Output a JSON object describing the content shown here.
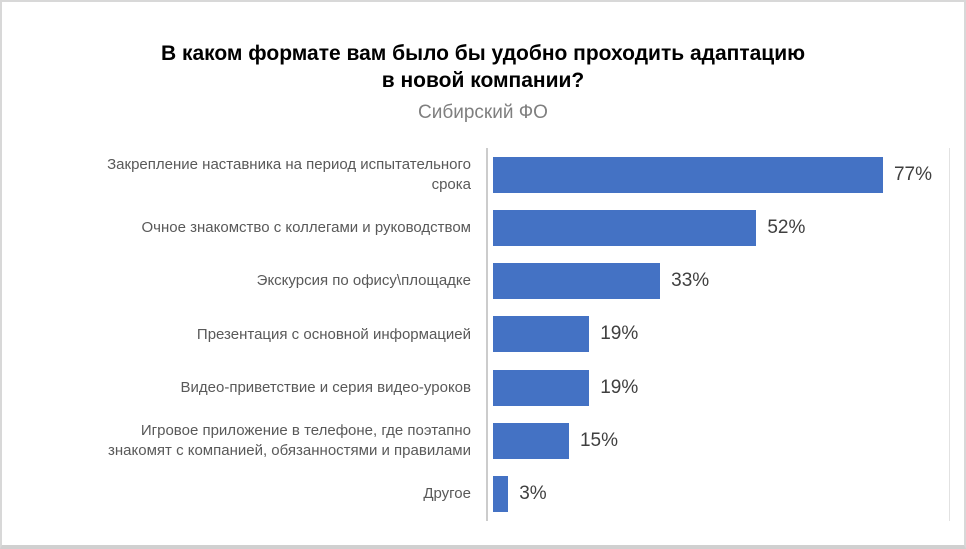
{
  "header": {
    "title_lines": [
      "В каком формате вам было бы удобно проходить адаптацию",
      "в новой компании?"
    ],
    "subtitle": "Сибирский ФО"
  },
  "chart_data": {
    "type": "bar",
    "orientation": "horizontal",
    "title": "В каком формате вам было бы удобно проходить адаптацию в новой компании?",
    "subtitle": "Сибирский ФО",
    "unit": "%",
    "categories": [
      "Закрепление наставника на период испытательного срока",
      "Очное знакомство с коллегами и руководством",
      "Экскурсия по офису\\площадке",
      "Презентация с основной информацией",
      "Видео-приветствие и серия видео-уроков",
      "Игровое приложение в телефоне, где поэтапно знакомят с компанией, обязанностями и правилами",
      "Другое"
    ],
    "category_label_lines": [
      [
        "Закрепление наставника на период испытательного",
        "срока"
      ],
      [
        "Очное знакомство с коллегами и руководством"
      ],
      [
        "Экскурсия по офису\\площадке"
      ],
      [
        "Презентация с основной информацией"
      ],
      [
        "Видео-приветствие и серия видео-уроков"
      ],
      [
        "Игровое приложение в телефоне, где поэтапно",
        "знакомят с компанией, обязанностями и правилами"
      ],
      [
        "Другое"
      ]
    ],
    "values": [
      77,
      52,
      33,
      19,
      19,
      15,
      3
    ],
    "value_labels": [
      "77%",
      "52%",
      "33%",
      "19%",
      "19%",
      "15%",
      "3%"
    ],
    "xlabel": "",
    "ylabel": "",
    "layout": {
      "value_axis_labels_shown": false,
      "gridlines": false,
      "legend": "none",
      "scale_max_estimated": 93,
      "bar_color": "#4472C4",
      "category_label_color": "#595959",
      "value_label_color": "#3f3f3f",
      "axis_line_color": "#cccccc",
      "subtitle_color": "#7f7f7f",
      "frame_border_color": "#d8d8d8"
    }
  }
}
